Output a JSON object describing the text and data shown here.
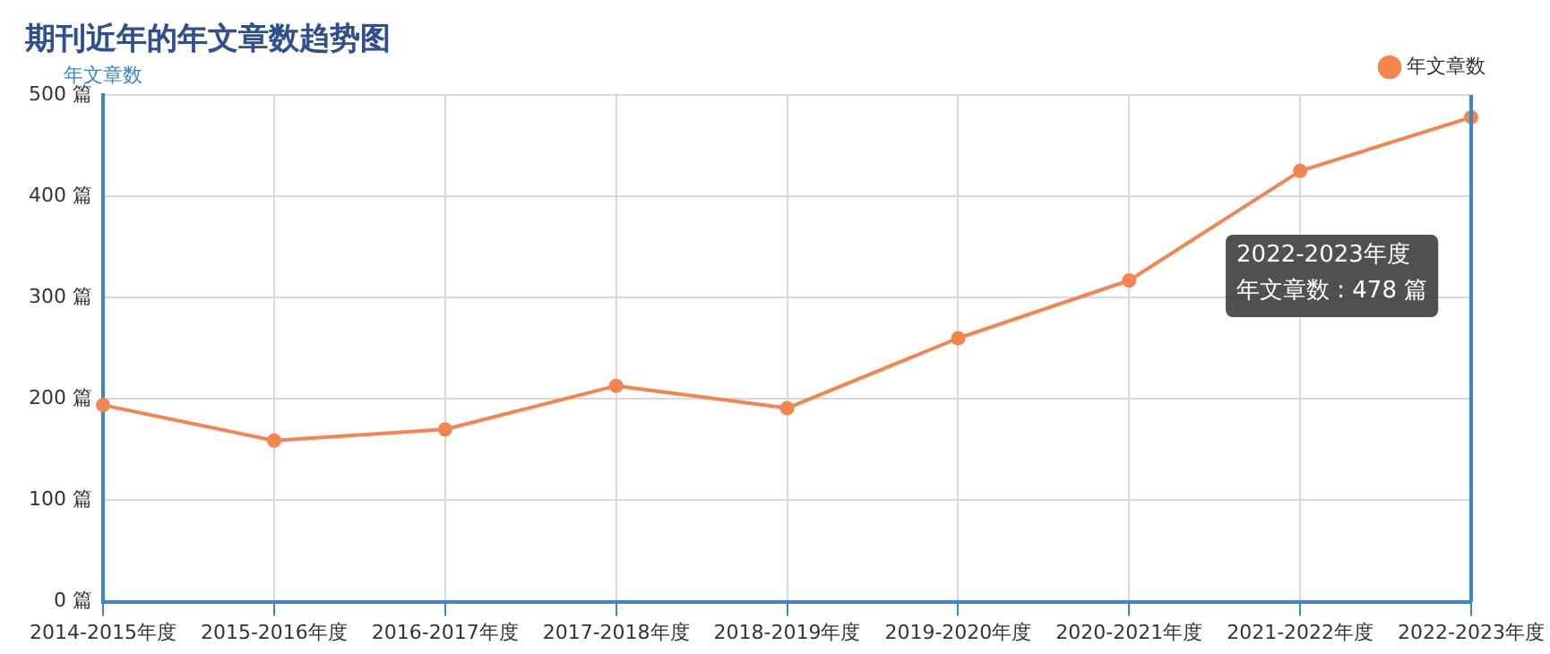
{
  "chart_data": {
    "type": "line",
    "title": "期刊近年的年文章数趋势图",
    "ylabel": "年文章数",
    "categories": [
      "2014-2015年度",
      "2015-2016年度",
      "2016-2017年度",
      "2017-2018年度",
      "2018-2019年度",
      "2019-2020年度",
      "2020-2021年度",
      "2021-2022年度",
      "2022-2023年度"
    ],
    "series": [
      {
        "name": "年文章数",
        "color": "#f5854f",
        "values": [
          194,
          159,
          170,
          213,
          191,
          260,
          317,
          425,
          478
        ]
      }
    ],
    "ylim": [
      0,
      500
    ],
    "yticks": [
      {
        "value": 0,
        "label": "0 篇"
      },
      {
        "value": 100,
        "label": "100 篇"
      },
      {
        "value": 200,
        "label": "200 篇"
      },
      {
        "value": 300,
        "label": "300 篇"
      },
      {
        "value": 400,
        "label": "400 篇"
      },
      {
        "value": 500,
        "label": "500 篇"
      }
    ],
    "grid": true,
    "legend": "top right",
    "marker": "circle",
    "line_style": "solid",
    "annotations": [
      "2022-2023年度",
      "年文章数 : 478 篇"
    ]
  }
}
